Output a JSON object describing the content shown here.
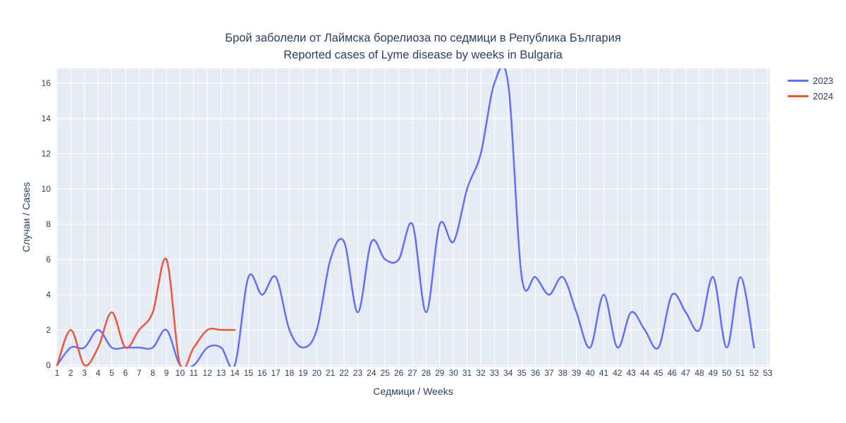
{
  "chart_data": {
    "type": "line",
    "line_shape": "spline",
    "title": "Брой заболели от Лаймска борелиоза по седмици в Република България",
    "subtitle": "Reported cases of Lyme disease by weeks in Bulgaria",
    "xlabel": "Седмици / Weeks",
    "ylabel": "Случаи / Cases",
    "x_ticks": [
      1,
      2,
      3,
      4,
      5,
      6,
      7,
      8,
      9,
      10,
      11,
      12,
      13,
      14,
      15,
      16,
      17,
      18,
      19,
      20,
      21,
      22,
      23,
      24,
      25,
      26,
      27,
      28,
      29,
      30,
      31,
      32,
      33,
      34,
      35,
      36,
      37,
      38,
      39,
      40,
      41,
      42,
      43,
      44,
      45,
      46,
      47,
      48,
      49,
      50,
      51,
      52,
      53
    ],
    "y_ticks": [
      0,
      2,
      4,
      6,
      8,
      10,
      12,
      14,
      16
    ],
    "ylim": [
      0,
      16.9
    ],
    "xlim": [
      0.95,
      53.2
    ],
    "grid": true,
    "legend_position": "top-right-outside",
    "colors": {
      "plot_bg": "#E5ECF6",
      "grid": "#FFFFFF",
      "text": "#2A3F5F",
      "paper": "#FFFFFF"
    },
    "series": [
      {
        "name": "2023",
        "color": "#636EFA",
        "start_week": 1,
        "values": [
          0,
          1,
          1,
          2,
          1,
          1,
          1,
          1,
          2,
          0,
          0,
          1,
          1,
          0,
          5,
          4,
          5,
          2,
          1,
          2,
          6,
          7,
          3,
          7,
          6,
          6,
          8,
          3,
          8,
          7,
          10,
          12,
          16,
          16,
          5,
          5,
          4,
          5,
          3,
          1,
          4,
          1,
          3,
          2,
          1,
          4,
          3,
          2,
          5,
          1,
          5,
          1
        ]
      },
      {
        "name": "2024",
        "color": "#EF553B",
        "start_week": 1,
        "values": [
          0,
          2,
          0,
          1,
          3,
          1,
          2,
          3,
          6,
          0,
          1,
          2,
          2,
          2
        ]
      }
    ]
  }
}
